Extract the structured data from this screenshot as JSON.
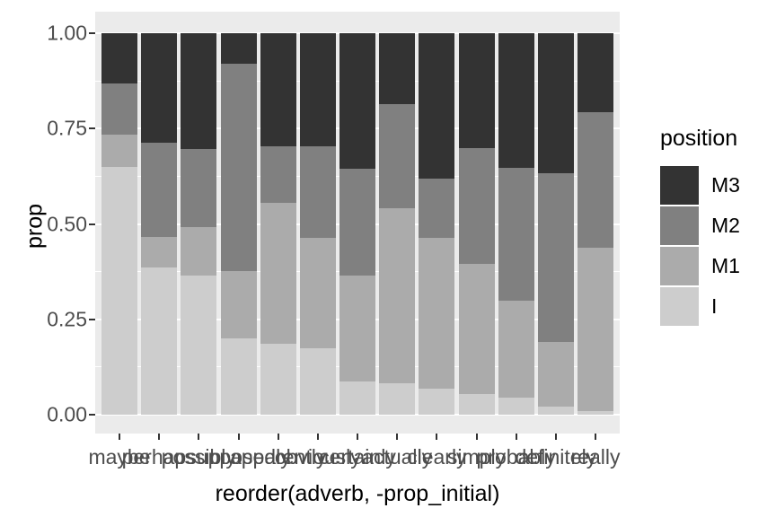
{
  "chart_data": {
    "type": "bar",
    "stacked": true,
    "title": "",
    "xlabel": "reorder(adverb, -prop_initial)",
    "ylabel": "prop",
    "categories": [
      "maybe",
      "perhaps",
      "possibly",
      "supposedly",
      "apparently",
      "obviously",
      "certainly",
      "actually",
      "clearly",
      "simply",
      "probably",
      "definitely",
      "really"
    ],
    "series": [
      {
        "name": "I",
        "color": "#CDCDCD",
        "values": [
          0.65,
          0.385,
          0.365,
          0.2,
          0.185,
          0.175,
          0.087,
          0.082,
          0.068,
          0.053,
          0.044,
          0.022,
          0.01
        ]
      },
      {
        "name": "M1",
        "color": "#ABABAB",
        "values": [
          0.084,
          0.082,
          0.127,
          0.177,
          0.37,
          0.289,
          0.278,
          0.46,
          0.396,
          0.342,
          0.256,
          0.169,
          0.428
        ]
      },
      {
        "name": "M2",
        "color": "#808080",
        "values": [
          0.135,
          0.245,
          0.204,
          0.544,
          0.148,
          0.239,
          0.28,
          0.272,
          0.154,
          0.304,
          0.348,
          0.441,
          0.356
        ]
      },
      {
        "name": "M3",
        "color": "#333333",
        "values": [
          0.131,
          0.288,
          0.304,
          0.079,
          0.297,
          0.297,
          0.355,
          0.186,
          0.382,
          0.301,
          0.352,
          0.368,
          0.206
        ]
      }
    ],
    "ylim": [
      0,
      1
    ],
    "y_ticks": [
      {
        "value": 1.0,
        "label": "1.00"
      },
      {
        "value": 0.75,
        "label": "0.75"
      },
      {
        "value": 0.5,
        "label": "0.50"
      },
      {
        "value": 0.25,
        "label": "0.25"
      },
      {
        "value": 0.0,
        "label": "0.00"
      }
    ],
    "y_minor_gridlines": [
      0.125,
      0.375,
      0.625,
      0.875
    ],
    "grid": true,
    "legend_title": "position",
    "legend_order": [
      "M3",
      "M2",
      "M1",
      "I"
    ],
    "legend_position": "right"
  },
  "colors": {
    "panel_background": "#EBEBEB",
    "gridline": "#FFFFFF",
    "tick_label": "#4D4D4D",
    "tick_mark": "#333333",
    "axis_title": "#000000"
  }
}
